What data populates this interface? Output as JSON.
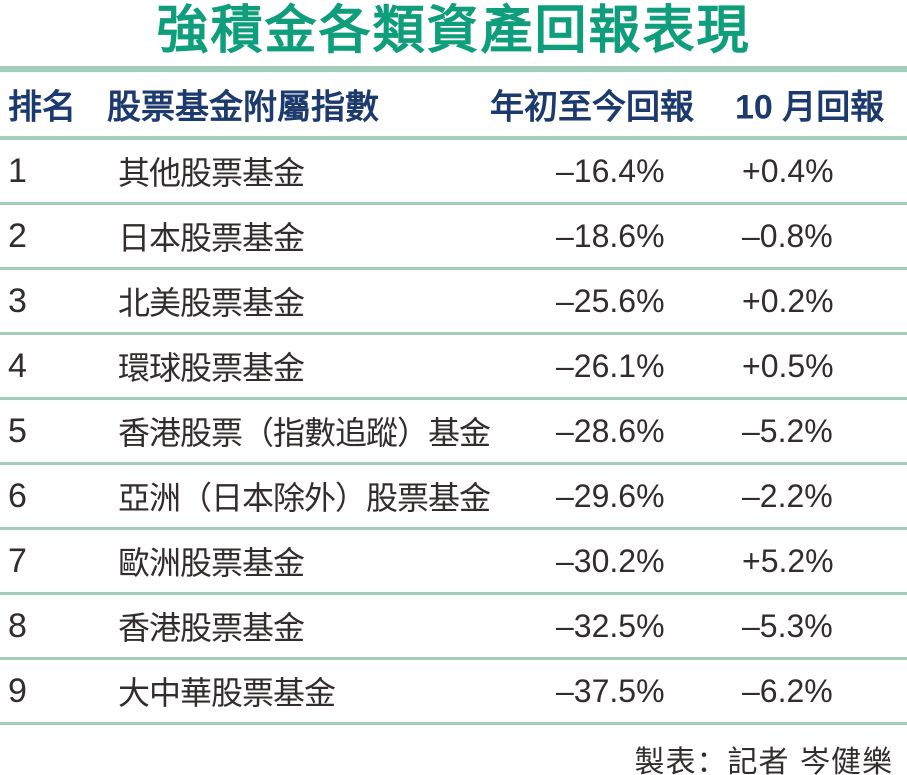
{
  "title": "強積金各類資產回報表現",
  "header": {
    "rank": "排名",
    "index": "股票基金附屬指數",
    "ytd": "年初至今回報",
    "oct": "10 月回報"
  },
  "rows": [
    {
      "rank": "1",
      "index": "其他股票基金",
      "ytd": "–16.4%",
      "oct": "+0.4%"
    },
    {
      "rank": "2",
      "index": "日本股票基金",
      "ytd": "–18.6%",
      "oct": "–0.8%"
    },
    {
      "rank": "3",
      "index": "北美股票基金",
      "ytd": "–25.6%",
      "oct": "+0.2%"
    },
    {
      "rank": "4",
      "index": "環球股票基金",
      "ytd": "–26.1%",
      "oct": "+0.5%"
    },
    {
      "rank": "5",
      "index": "香港股票（指數追蹤）基金",
      "ytd": "–28.6%",
      "oct": "–5.2%"
    },
    {
      "rank": "6",
      "index": "亞洲（日本除外）股票基金",
      "ytd": "–29.6%",
      "oct": "–2.2%"
    },
    {
      "rank": "7",
      "index": "歐洲股票基金",
      "ytd": "–30.2%",
      "oct": "+5.2%"
    },
    {
      "rank": "8",
      "index": "香港股票基金",
      "ytd": "–32.5%",
      "oct": "–5.3%"
    },
    {
      "rank": "9",
      "index": "大中華股票基金",
      "ytd": "–37.5%",
      "oct": "–6.2%"
    }
  ],
  "footer": {
    "credit": "製表：記者 岑健樂"
  },
  "colors": {
    "title_green": "#0F9E7C",
    "rule_green": "#A3CFBA",
    "header_navy": "#1D3A6E",
    "body_text": "#332C2D",
    "background": "#FFFFFF"
  },
  "chart_data": {
    "type": "table",
    "title": "強積金各類資產回報表現",
    "columns": [
      "排名",
      "股票基金附屬指數",
      "年初至今回報",
      "10月回報"
    ],
    "rows": [
      [
        "1",
        "其他股票基金",
        "-16.4%",
        "+0.4%"
      ],
      [
        "2",
        "日本股票基金",
        "-18.6%",
        "-0.8%"
      ],
      [
        "3",
        "北美股票基金",
        "-25.6%",
        "+0.2%"
      ],
      [
        "4",
        "環球股票基金",
        "-26.1%",
        "+0.5%"
      ],
      [
        "5",
        "香港股票（指數追蹤）基金",
        "-28.6%",
        "-5.2%"
      ],
      [
        "6",
        "亞洲（日本除外）股票基金",
        "-29.6%",
        "-2.2%"
      ],
      [
        "7",
        "歐洲股票基金",
        "-30.2%",
        "+5.2%"
      ],
      [
        "8",
        "香港股票基金",
        "-32.5%",
        "-5.3%"
      ],
      [
        "9",
        "大中華股票基金",
        "-37.5%",
        "-6.2%"
      ]
    ],
    "ytd_returns_pct": [
      -16.4,
      -18.6,
      -25.6,
      -26.1,
      -28.6,
      -29.6,
      -30.2,
      -32.5,
      -37.5
    ],
    "oct_returns_pct": [
      0.4,
      -0.8,
      0.2,
      0.5,
      -5.2,
      -2.2,
      5.2,
      -5.3,
      -6.2
    ],
    "annotations": [
      "製表：記者 岑健樂"
    ]
  }
}
